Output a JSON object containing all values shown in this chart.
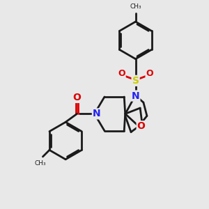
{
  "bg_color": "#e8e8e8",
  "bond_color": "#1a1a1a",
  "n_color": "#2222ee",
  "o_color": "#dd0000",
  "s_color": "#cccc00",
  "lw": 2.0,
  "xlim": [
    0,
    10
  ],
  "ylim": [
    0,
    10
  ]
}
